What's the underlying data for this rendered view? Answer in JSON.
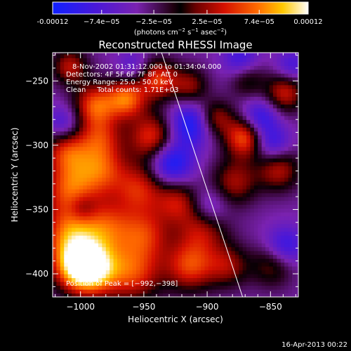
{
  "colorbar": {
    "ticks": [
      "-0.00012",
      "−7.4e−05",
      "−2.5e−05",
      "2.5e−05",
      "7.4e−05",
      "0.00012"
    ],
    "tick_values": [
      -0.00012,
      -7.4e-05,
      -2.5e-05,
      2.5e-05,
      7.4e-05,
      0.00012
    ],
    "units_main": "(photons cm",
    "units_exp1": "−2",
    "units_mid": " s",
    "units_exp2": "−1",
    "units_end": " asec",
    "units_exp3": "−2",
    "units_close": ")"
  },
  "chart_data": {
    "type": "heatmap",
    "title": "Reconstructed RHESSI Image",
    "xlabel": "Heliocentric X (arcsec)",
    "ylabel": "Heliocentric Y (arcsec)",
    "xlim": [
      -1022,
      -828
    ],
    "ylim": [
      -418,
      -228
    ],
    "x_ticks": [
      -1000,
      -950,
      -900,
      -850
    ],
    "y_ticks": [
      -250,
      -300,
      -350,
      -400
    ],
    "x_tick_labels": [
      "−1000",
      "−950",
      "−900",
      "−850"
    ],
    "y_tick_labels": [
      "−250",
      "−300",
      "−350",
      "−400"
    ],
    "annotations": {
      "time": "8-Nov-2002 01:31:12.000 to 01:34:04.000",
      "detectors": "Detectors: 4F 5F 6F 7F 8F, Att 0",
      "energy": "Energy Range: 25.0 - 50.0 keV",
      "clean": "Clean     Total counts: 1.71E+03",
      "peak": "Position of Peak = [−992,−398]"
    },
    "peak": [
      -992,
      -398
    ],
    "limb_line": [
      [
        -936,
        -228
      ],
      [
        -872,
        -418
      ]
    ],
    "blobs": [
      {
        "x": -992,
        "y": -398,
        "v": 1.0,
        "s": 14
      },
      {
        "x": -1005,
        "y": -395,
        "v": 0.85,
        "s": 14
      },
      {
        "x": -960,
        "y": -400,
        "v": 0.75,
        "s": 16
      },
      {
        "x": -1010,
        "y": -370,
        "v": 0.8,
        "s": 16
      },
      {
        "x": -980,
        "y": -365,
        "v": 0.65,
        "s": 15
      },
      {
        "x": -950,
        "y": -370,
        "v": 0.6,
        "s": 14
      },
      {
        "x": -1010,
        "y": -335,
        "v": 0.75,
        "s": 15
      },
      {
        "x": -985,
        "y": -320,
        "v": 0.7,
        "s": 14
      },
      {
        "x": -955,
        "y": -335,
        "v": 0.65,
        "s": 14
      },
      {
        "x": -1012,
        "y": -305,
        "v": 0.7,
        "s": 13
      },
      {
        "x": -990,
        "y": -270,
        "v": 0.8,
        "s": 12
      },
      {
        "x": -965,
        "y": -265,
        "v": 0.85,
        "s": 11
      },
      {
        "x": -985,
        "y": -295,
        "v": 0.55,
        "s": 12
      },
      {
        "x": -945,
        "y": -295,
        "v": 0.75,
        "s": 13
      },
      {
        "x": -940,
        "y": -250,
        "v": 0.75,
        "s": 11
      },
      {
        "x": -1010,
        "y": -240,
        "v": 0.6,
        "s": 10
      },
      {
        "x": -915,
        "y": -255,
        "v": 0.5,
        "s": 10
      },
      {
        "x": -915,
        "y": -395,
        "v": 0.75,
        "s": 14
      },
      {
        "x": -905,
        "y": -365,
        "v": 0.6,
        "s": 14
      },
      {
        "x": -925,
        "y": -345,
        "v": 0.55,
        "s": 12
      },
      {
        "x": -880,
        "y": -330,
        "v": 0.55,
        "s": 13
      },
      {
        "x": -872,
        "y": -295,
        "v": 0.85,
        "s": 11
      },
      {
        "x": -895,
        "y": -280,
        "v": 0.55,
        "s": 10
      },
      {
        "x": -845,
        "y": -320,
        "v": 0.6,
        "s": 12
      },
      {
        "x": -840,
        "y": -260,
        "v": 0.65,
        "s": 11
      },
      {
        "x": -885,
        "y": -395,
        "v": 0.5,
        "s": 12
      },
      {
        "x": -850,
        "y": -395,
        "v": 0.45,
        "s": 12
      },
      {
        "x": -870,
        "y": -250,
        "v": 0.4,
        "s": 10
      },
      {
        "x": -1015,
        "y": -285,
        "v": -0.45,
        "s": 10
      },
      {
        "x": -930,
        "y": -315,
        "v": -0.7,
        "s": 12
      },
      {
        "x": -915,
        "y": -285,
        "v": -0.65,
        "s": 12
      },
      {
        "x": -900,
        "y": -350,
        "v": -0.45,
        "s": 11
      },
      {
        "x": -860,
        "y": -280,
        "v": -0.55,
        "s": 10
      },
      {
        "x": -850,
        "y": -300,
        "v": -0.5,
        "s": 10
      },
      {
        "x": -875,
        "y": -235,
        "v": -0.45,
        "s": 10
      },
      {
        "x": -835,
        "y": -240,
        "v": -0.4,
        "s": 9
      },
      {
        "x": -840,
        "y": -380,
        "v": -0.5,
        "s": 11
      },
      {
        "x": -960,
        "y": -240,
        "v": -0.3,
        "s": 9
      },
      {
        "x": -1000,
        "y": -350,
        "v": -0.3,
        "s": 8
      }
    ]
  },
  "timestamp": "16-Apr-2013 00:22"
}
